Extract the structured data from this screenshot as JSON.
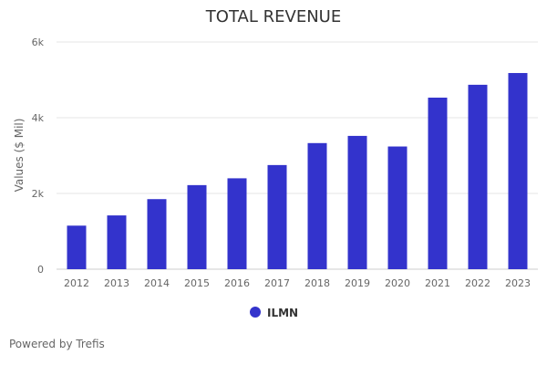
{
  "chart_data": {
    "type": "bar",
    "title": "TOTAL REVENUE",
    "ylabel": "Values ($ Mil)",
    "xlabel": "",
    "ylim": [
      0,
      6000
    ],
    "yticks": [
      {
        "value": 0,
        "label": "0"
      },
      {
        "value": 2000,
        "label": "2k"
      },
      {
        "value": 4000,
        "label": "4k"
      },
      {
        "value": 6000,
        "label": "6k"
      }
    ],
    "grid": true,
    "legend_position": "bottom-center",
    "categories": [
      "2012",
      "2013",
      "2014",
      "2015",
      "2016",
      "2017",
      "2018",
      "2019",
      "2020",
      "2021",
      "2022",
      "2023"
    ],
    "series": [
      {
        "name": "ILMN",
        "color": "#3333cc",
        "values": [
          1150,
          1420,
          1850,
          2220,
          2400,
          2750,
          3330,
          3520,
          3240,
          4530,
          4870,
          5180
        ]
      }
    ]
  },
  "footer": {
    "credit": "Powered by Trefis"
  }
}
